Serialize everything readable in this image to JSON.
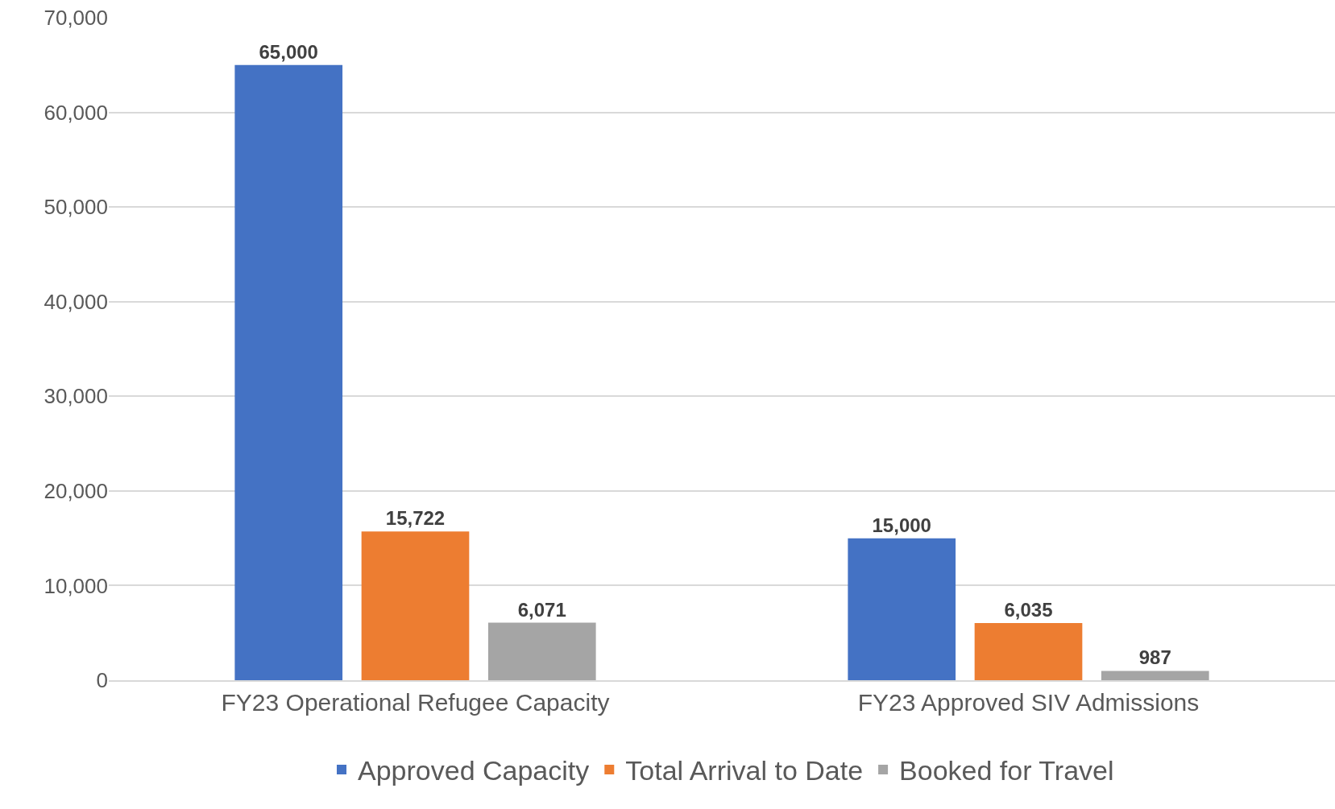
{
  "chart_data": {
    "type": "bar",
    "categories": [
      "FY23 Operational Refugee Capacity",
      "FY23 Approved SIV Admissions"
    ],
    "series": [
      {
        "name": "Approved Capacity",
        "color": "#4472c4",
        "values": [
          65000,
          15000
        ],
        "value_labels": [
          "65,000",
          "15,000"
        ]
      },
      {
        "name": "Total Arrival to Date",
        "color": "#ed7d31",
        "values": [
          15722,
          6035
        ],
        "value_labels": [
          "15,722",
          "6,035"
        ]
      },
      {
        "name": "Booked for Travel",
        "color": "#a5a5a5",
        "values": [
          6071,
          987
        ],
        "value_labels": [
          "6,071",
          "987"
        ]
      }
    ],
    "ylim": [
      0,
      70000
    ],
    "yticks": [
      {
        "value": 0,
        "label": "0"
      },
      {
        "value": 10000,
        "label": "10,000"
      },
      {
        "value": 20000,
        "label": "20,000"
      },
      {
        "value": 30000,
        "label": "30,000"
      },
      {
        "value": 40000,
        "label": "40,000"
      },
      {
        "value": 50000,
        "label": "50,000"
      },
      {
        "value": 60000,
        "label": "60,000"
      },
      {
        "value": 70000,
        "label": "70,000"
      }
    ],
    "grid": "y",
    "legend": "bottom"
  }
}
